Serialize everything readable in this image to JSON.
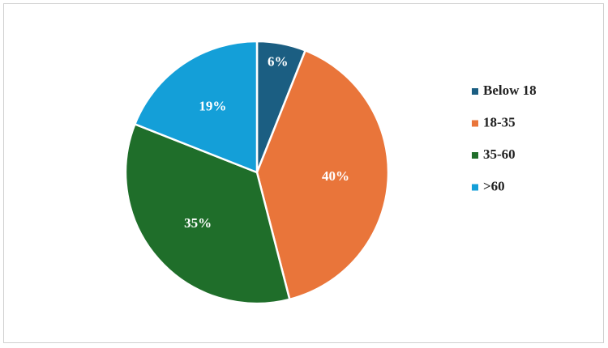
{
  "chart_data": {
    "type": "pie",
    "categories": [
      "Below 18",
      "18-35",
      "35-60",
      ">60"
    ],
    "values": [
      6,
      40,
      35,
      19
    ],
    "value_labels": [
      "6%",
      "40%",
      "35%",
      "19%"
    ],
    "colors": [
      "#1b5e82",
      "#e9753a",
      "#1f6e2a",
      "#149fd8"
    ],
    "legend": "right"
  }
}
